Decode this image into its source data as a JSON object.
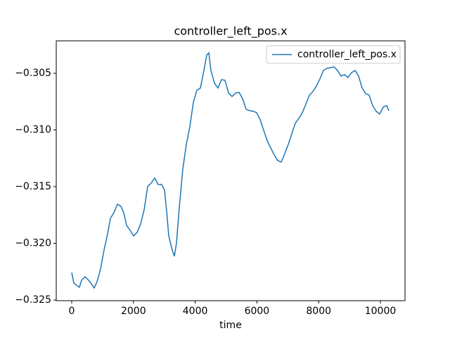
{
  "chart_data": {
    "type": "line",
    "title": "controller_left_pos.x",
    "x_label": "time",
    "x": [
      0,
      68,
      182,
      250,
      319,
      433,
      547,
      638,
      729,
      820,
      934,
      1048,
      1162,
      1253,
      1367,
      1481,
      1595,
      1686,
      1777,
      1891,
      2005,
      2118,
      2232,
      2346,
      2460,
      2574,
      2688,
      2802,
      2916,
      3007,
      3075,
      3144,
      3257,
      3326,
      3394,
      3485,
      3599,
      3713,
      3827,
      3941,
      4055,
      4169,
      4282,
      4374,
      4442,
      4510,
      4624,
      4738,
      4852,
      4966,
      5080,
      5194,
      5308,
      5421,
      5535,
      5649,
      5763,
      5877,
      5991,
      6105,
      6219,
      6333,
      6446,
      6560,
      6674,
      6788,
      6902,
      7016,
      7130,
      7244,
      7358,
      7472,
      7585,
      7699,
      7813,
      7927,
      8041,
      8155,
      8269,
      8383,
      8497,
      8610,
      8724,
      8838,
      8952,
      9066,
      9180,
      9294,
      9408,
      9522,
      9636,
      9749,
      9863,
      9977,
      10091,
      10205,
      10273
    ],
    "series": [
      {
        "name": "controller_left_pos.x",
        "color": "#1f77b4",
        "values": [
          -0.32258,
          -0.3235,
          -0.32376,
          -0.32388,
          -0.32326,
          -0.32295,
          -0.32326,
          -0.32357,
          -0.32394,
          -0.32338,
          -0.32227,
          -0.32059,
          -0.31916,
          -0.3178,
          -0.3173,
          -0.31655,
          -0.31674,
          -0.3173,
          -0.31842,
          -0.31885,
          -0.31935,
          -0.31904,
          -0.31829,
          -0.31705,
          -0.315,
          -0.31469,
          -0.31425,
          -0.31481,
          -0.31481,
          -0.31531,
          -0.31717,
          -0.31935,
          -0.32059,
          -0.32115,
          -0.31997,
          -0.31686,
          -0.31345,
          -0.31127,
          -0.30972,
          -0.30755,
          -0.30649,
          -0.3063,
          -0.30475,
          -0.30339,
          -0.3032,
          -0.30475,
          -0.30587,
          -0.3063,
          -0.30556,
          -0.30562,
          -0.30674,
          -0.30705,
          -0.30674,
          -0.30668,
          -0.30724,
          -0.30817,
          -0.3083,
          -0.30835,
          -0.30848,
          -0.3091,
          -0.31003,
          -0.31096,
          -0.31158,
          -0.3122,
          -0.3127,
          -0.31283,
          -0.31208,
          -0.31127,
          -0.31034,
          -0.30941,
          -0.30898,
          -0.30848,
          -0.30773,
          -0.30693,
          -0.30661,
          -0.30612,
          -0.3055,
          -0.30475,
          -0.30457,
          -0.3045,
          -0.30444,
          -0.30475,
          -0.30525,
          -0.30512,
          -0.30537,
          -0.30494,
          -0.30475,
          -0.30525,
          -0.3063,
          -0.3068,
          -0.30693,
          -0.30786,
          -0.30835,
          -0.3086,
          -0.30798,
          -0.30786,
          -0.3083
        ]
      }
    ],
    "xlim": [
      -501,
      10797
    ],
    "ylim": [
      -0.32506,
      -0.30214
    ],
    "xticks": [
      0,
      2000,
      4000,
      6000,
      8000,
      10000
    ],
    "yticks": [
      {
        "value": -0.325,
        "label": "−0.325"
      },
      {
        "value": -0.32,
        "label": "−0.320"
      },
      {
        "value": -0.315,
        "label": "−0.315"
      },
      {
        "value": -0.31,
        "label": "−0.310"
      },
      {
        "value": -0.305,
        "label": "−0.305"
      }
    ],
    "legend": "upper right"
  }
}
